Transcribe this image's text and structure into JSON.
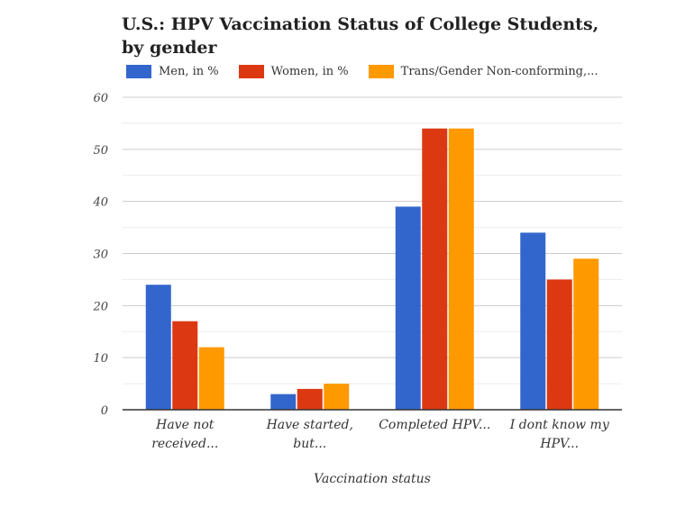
{
  "chart_data": {
    "type": "bar",
    "title": "U.S.: HPV Vaccination Status of College Students, by gender",
    "xlabel": "Vaccination status",
    "ylabel": "",
    "ylim": [
      0,
      60
    ],
    "yticks": [
      "0",
      "10",
      "20",
      "30",
      "40",
      "50",
      "60"
    ],
    "grid": true,
    "legend_position": "top",
    "categories": [
      [
        "Have not",
        "received..."
      ],
      [
        "Have started,",
        "but..."
      ],
      [
        "Completed HPV..."
      ],
      [
        "I dont know my",
        "HPV..."
      ]
    ],
    "series": [
      {
        "name": "Men, in %",
        "color": "#3366cc",
        "values": [
          24,
          3,
          39,
          34
        ]
      },
      {
        "name": "Women, in %",
        "color": "#dc3912",
        "values": [
          17,
          4,
          54,
          25
        ]
      },
      {
        "name": "Trans/Gender Non-conforming,...",
        "color": "#ff9900",
        "values": [
          12,
          5,
          54,
          29
        ]
      }
    ]
  }
}
